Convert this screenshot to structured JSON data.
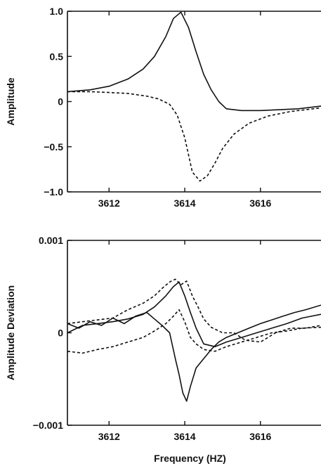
{
  "chart_data": [
    {
      "type": "line",
      "xlabel": "",
      "ylabel": "Amplitude",
      "xlim": [
        3610.9,
        3617.6
      ],
      "ylim": [
        -1.0,
        1.0
      ],
      "xticks": [
        3612,
        3614,
        3616
      ],
      "xtick_labels": [
        "3612",
        "3614",
        "3616"
      ],
      "yticks": [
        1.0,
        0.5,
        0,
        -0.5,
        -1.0
      ],
      "ytick_labels": [
        "1.0",
        "0.5",
        "0",
        "-0.5",
        "-1.0"
      ],
      "grid": false,
      "series": [
        {
          "style": "solid",
          "color": "#111111",
          "x": [
            3610.9,
            3611.5,
            3612.0,
            3612.5,
            3612.9,
            3613.2,
            3613.5,
            3613.7,
            3613.9,
            3614.1,
            3614.3,
            3614.5,
            3614.7,
            3614.9,
            3615.1,
            3615.5,
            3616.0,
            3616.5,
            3617.0,
            3617.6
          ],
          "y": [
            0.11,
            0.13,
            0.17,
            0.25,
            0.36,
            0.5,
            0.72,
            0.92,
            0.99,
            0.82,
            0.55,
            0.3,
            0.13,
            0.0,
            -0.08,
            -0.1,
            -0.1,
            -0.09,
            -0.08,
            -0.05
          ]
        },
        {
          "style": "dashed",
          "color": "#111111",
          "x": [
            3610.9,
            3611.5,
            3612.0,
            3612.5,
            3613.0,
            3613.3,
            3613.6,
            3613.8,
            3614.0,
            3614.2,
            3614.4,
            3614.6,
            3614.8,
            3615.0,
            3615.3,
            3615.7,
            3616.2,
            3616.8,
            3617.6
          ],
          "y": [
            0.11,
            0.11,
            0.1,
            0.09,
            0.06,
            0.03,
            -0.03,
            -0.15,
            -0.4,
            -0.78,
            -0.88,
            -0.82,
            -0.68,
            -0.52,
            -0.36,
            -0.24,
            -0.16,
            -0.11,
            -0.07
          ]
        }
      ]
    },
    {
      "type": "line",
      "xlabel": "Frequency (HZ)",
      "ylabel": "Amplitude Deviation",
      "xlim": [
        3610.9,
        3617.6
      ],
      "ylim": [
        -0.001,
        0.001
      ],
      "xticks": [
        3612,
        3614,
        3616
      ],
      "xtick_labels": [
        "3612",
        "3614",
        "3616"
      ],
      "yticks": [
        0.001,
        0,
        -0.001
      ],
      "ytick_labels": [
        "0.001",
        "0",
        "-0.001"
      ],
      "grid": false,
      "series": [
        {
          "style": "solid",
          "color": "#111111",
          "x": [
            3610.9,
            3611.2,
            3611.5,
            3611.8,
            3612.1,
            3612.4,
            3612.7,
            3613.0,
            3613.2,
            3613.4,
            3613.6,
            3613.75,
            3613.85,
            3613.95,
            3614.05,
            3614.15,
            3614.3,
            3614.5,
            3614.7,
            3614.9,
            3615.1,
            3615.4,
            3615.7,
            3616.0,
            3616.3,
            3616.6,
            3616.9,
            3617.2,
            3617.6
          ],
          "y": [
            0.0001,
            5e-05,
            0.00012,
            8e-05,
            0.00016,
            0.0001,
            0.00018,
            0.00022,
            0.00015,
            8e-05,
            0.0,
            -0.00028,
            -0.00045,
            -0.00065,
            -0.00074,
            -0.00058,
            -0.00038,
            -0.00028,
            -0.00018,
            -0.0001,
            -5e-05,
            0.0,
            5e-05,
            0.0001,
            0.00014,
            0.00018,
            0.00022,
            0.00025,
            0.0003
          ]
        },
        {
          "style": "solid",
          "color": "#111111",
          "x": [
            3610.9,
            3611.3,
            3611.7,
            3612.1,
            3612.5,
            3612.9,
            3613.2,
            3613.5,
            3613.7,
            3613.85,
            3614.0,
            3614.15,
            3614.3,
            3614.5,
            3614.8,
            3615.1,
            3615.5,
            3615.9,
            3616.3,
            3616.7,
            3617.1,
            3617.6
          ],
          "y": [
            0.0,
            8e-05,
            0.0001,
            0.00012,
            0.00015,
            0.0002,
            0.00028,
            0.0004,
            0.0005,
            0.00055,
            0.0004,
            0.00022,
            5e-05,
            -0.00012,
            -0.00015,
            -0.0001,
            -5e-05,
            0.0,
            5e-05,
            0.0001,
            0.00016,
            0.0002
          ]
        },
        {
          "style": "dashed",
          "color": "#111111",
          "x": [
            3610.9,
            3611.3,
            3611.7,
            3612.1,
            3612.5,
            3612.9,
            3613.2,
            3613.4,
            3613.6,
            3613.75,
            3613.9,
            3614.05,
            3614.2,
            3614.35,
            3614.5,
            3614.7,
            3615.0,
            3615.3,
            3615.6,
            3616.0,
            3616.4,
            3616.8,
            3617.2,
            3617.6
          ],
          "y": [
            0.0001,
            0.00012,
            0.00014,
            0.00016,
            0.00025,
            0.00032,
            0.0004,
            0.00048,
            0.00055,
            0.00058,
            0.00052,
            0.00056,
            0.0004,
            0.00028,
            0.00015,
            6e-05,
            0.0,
            0.0,
            -8e-05,
            -0.0001,
            0.0,
            5e-05,
            5e-05,
            8e-05
          ]
        },
        {
          "style": "dashed",
          "color": "#111111",
          "x": [
            3610.9,
            3611.3,
            3611.7,
            3612.1,
            3612.5,
            3612.9,
            3613.2,
            3613.5,
            3613.7,
            3613.85,
            3614.0,
            3614.15,
            3614.3,
            3614.5,
            3614.8,
            3615.1,
            3615.5,
            3615.9,
            3616.3,
            3616.7,
            3617.1,
            3617.6
          ],
          "y": [
            -0.0002,
            -0.00022,
            -0.00018,
            -0.00015,
            -0.0001,
            -5e-05,
            2e-05,
            0.0001,
            0.00018,
            0.00025,
            0.00012,
            -5e-05,
            -0.00012,
            -0.00018,
            -0.0002,
            -0.00015,
            -0.0001,
            -5e-05,
            0.0,
            2e-05,
            5e-05,
            6e-05
          ]
        }
      ]
    }
  ]
}
